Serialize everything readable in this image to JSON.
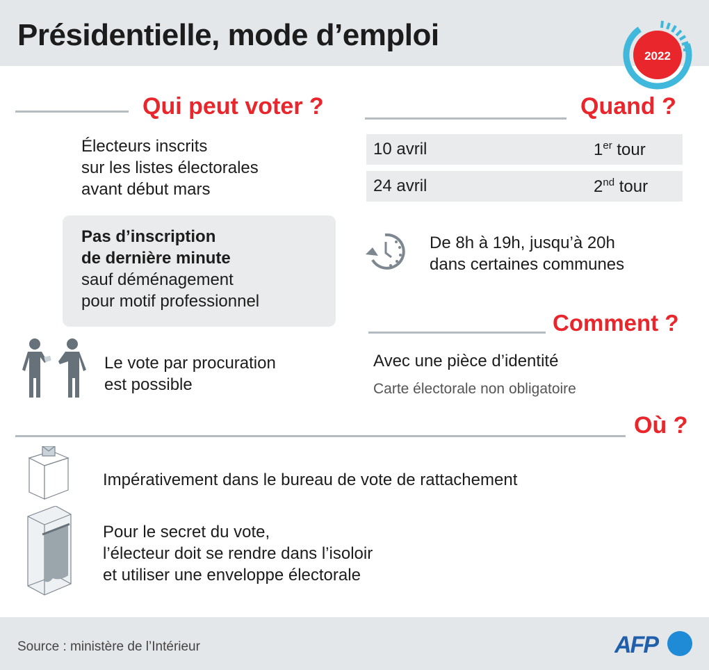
{
  "title": "Présidentielle, mode d’emploi",
  "badge": {
    "year": "2022",
    "colors": {
      "red": "#e8262b",
      "blue": "#3fb8dc"
    }
  },
  "qui": {
    "heading": "Qui peut voter ?",
    "lines": [
      "Électeurs inscrits",
      "sur les listes électorales",
      "avant début mars"
    ],
    "note_bold": [
      "Pas d’inscription",
      "de dernière minute"
    ],
    "note": [
      "sauf déménagement",
      "pour motif professionnel"
    ],
    "procuration": [
      "Le vote par procuration",
      "est possible"
    ]
  },
  "quand": {
    "heading": "Quand  ?",
    "rounds": [
      {
        "date": "10 avril",
        "num": "1",
        "sup": "er",
        "label": "tour"
      },
      {
        "date": "24 avril",
        "num": "2",
        "sup": "nd",
        "label": "tour"
      }
    ],
    "hours": [
      "De 8h à 19h, jusqu’à 20h",
      "dans certaines communes"
    ]
  },
  "comment": {
    "heading": "Comment ?",
    "main": "Avec une pièce d’identité",
    "sub": "Carte électorale non obligatoire"
  },
  "ou": {
    "heading": "Où ?",
    "bureau": "Impérativement dans le bureau de vote de rattachement",
    "isoloir": [
      "Pour le secret du vote,",
      "l’électeur doit se rendre dans l’isoloir",
      "et utiliser une enveloppe électorale"
    ]
  },
  "footer": {
    "source": "Source : ministère de l’Intérieur",
    "logo": "AFP"
  }
}
